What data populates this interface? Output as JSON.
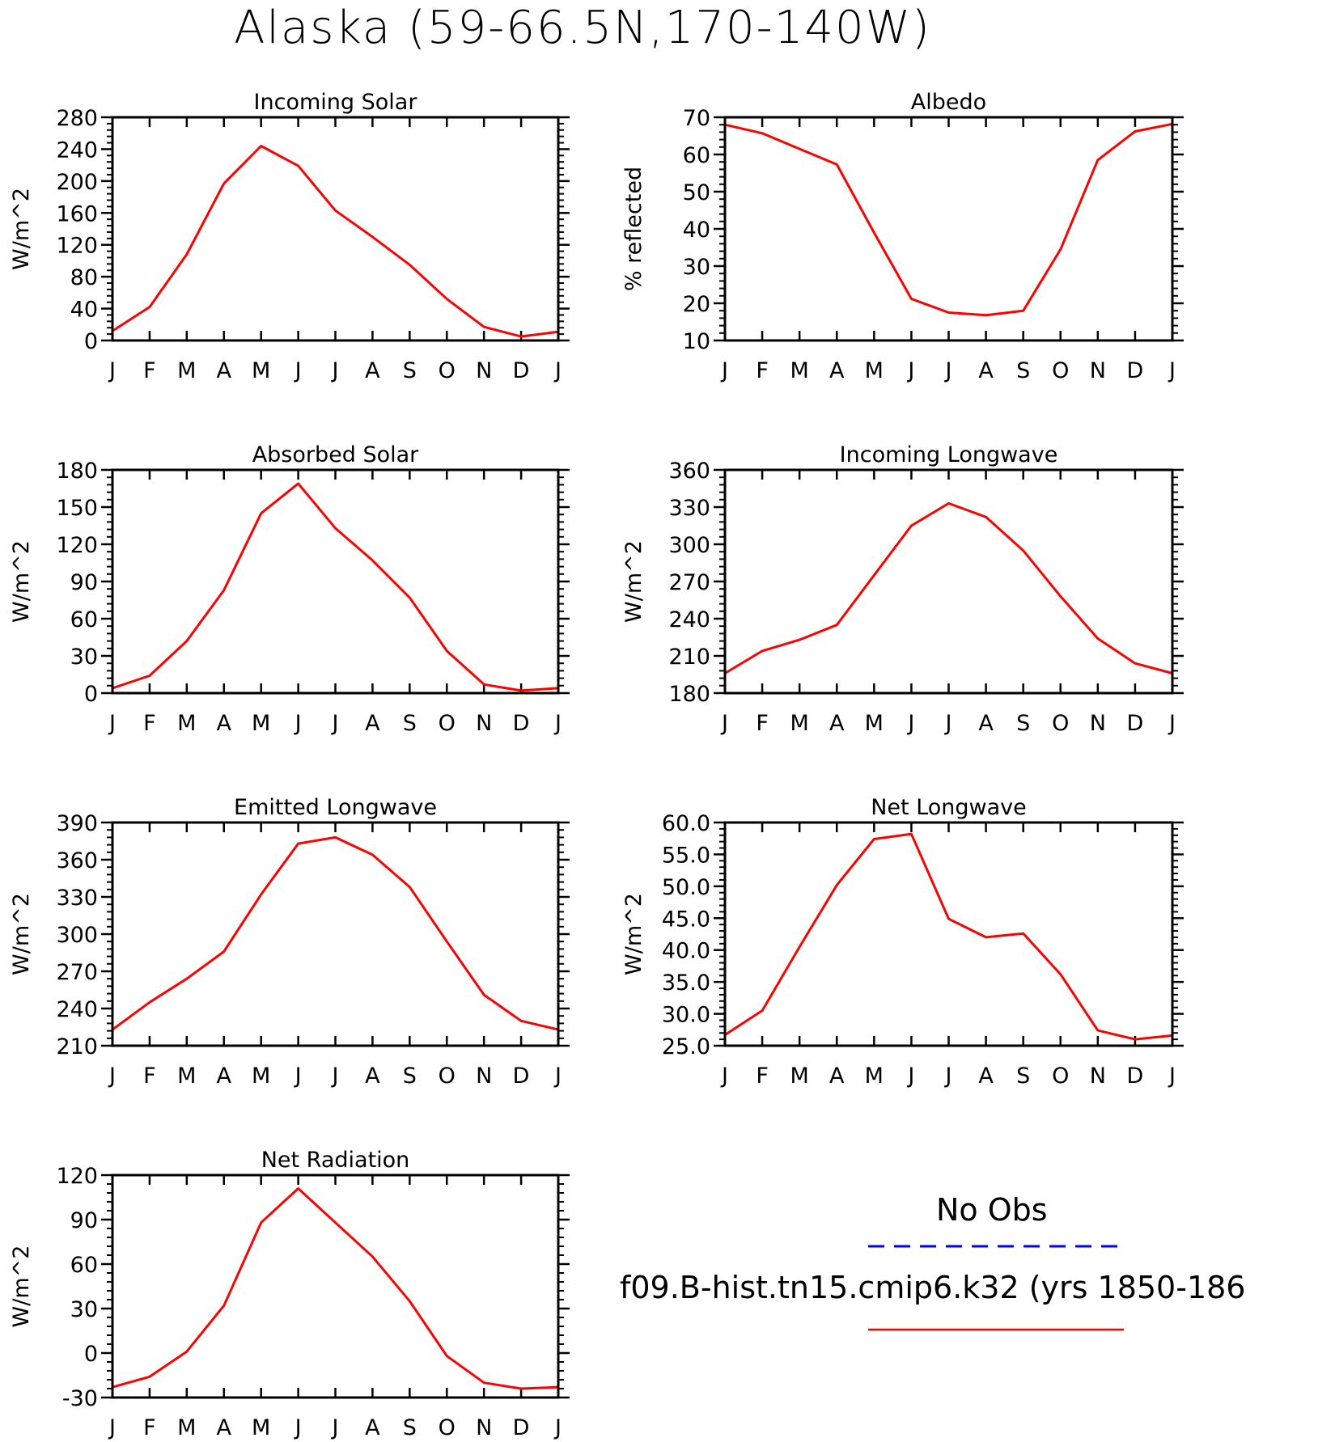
{
  "title": "Alaska (59-66.5N,170-140W)",
  "colors": {
    "model": "#ff0000",
    "obs": "#0000ff"
  },
  "legend": {
    "obs_label": "No Obs",
    "model_label": "f09.B-hist.tn15.cmip6.k32 (yrs 1850-186"
  },
  "chart_data": [
    {
      "type": "line",
      "title": "Incoming Solar",
      "ylabel": "W/m^2",
      "categories": [
        "J",
        "F",
        "M",
        "A",
        "M",
        "J",
        "J",
        "A",
        "S",
        "O",
        "N",
        "D",
        "J"
      ],
      "ylim": [
        0,
        280
      ],
      "yticks": [
        "0",
        "40",
        "80",
        "120",
        "160",
        "200",
        "240",
        "280"
      ],
      "series": [
        {
          "values": [
            12,
            42,
            108,
            197,
            244,
            219,
            163,
            130,
            95,
            52,
            17,
            5,
            11
          ]
        }
      ]
    },
    {
      "type": "line",
      "title": "Albedo",
      "ylabel": "% reflected",
      "categories": [
        "J",
        "F",
        "M",
        "A",
        "M",
        "J",
        "J",
        "A",
        "S",
        "O",
        "N",
        "D",
        "J"
      ],
      "ylim": [
        10,
        70
      ],
      "yticks": [
        "10",
        "20",
        "30",
        "40",
        "50",
        "60",
        "70"
      ],
      "series": [
        {
          "values": [
            68,
            65.7,
            61.5,
            57.3,
            39,
            21.2,
            17.5,
            16.8,
            18,
            34.5,
            58.5,
            66.2,
            68.2
          ]
        }
      ]
    },
    {
      "type": "line",
      "title": "Absorbed Solar",
      "ylabel": "W/m^2",
      "categories": [
        "J",
        "F",
        "M",
        "A",
        "M",
        "J",
        "J",
        "A",
        "S",
        "O",
        "N",
        "D",
        "J"
      ],
      "ylim": [
        0,
        180
      ],
      "yticks": [
        "0",
        "30",
        "60",
        "90",
        "120",
        "150",
        "180"
      ],
      "series": [
        {
          "values": [
            4,
            14,
            42,
            83,
            145,
            169,
            133,
            107,
            77,
            34,
            7,
            2,
            4
          ]
        }
      ]
    },
    {
      "type": "line",
      "title": "Incoming Longwave",
      "ylabel": "W/m^2",
      "categories": [
        "J",
        "F",
        "M",
        "A",
        "M",
        "J",
        "J",
        "A",
        "S",
        "O",
        "N",
        "D",
        "J"
      ],
      "ylim": [
        180,
        360
      ],
      "yticks": [
        "180",
        "210",
        "240",
        "270",
        "300",
        "330",
        "360"
      ],
      "series": [
        {
          "values": [
            196,
            214,
            223,
            235,
            275,
            315,
            333,
            322,
            295,
            258,
            224,
            204,
            196
          ]
        }
      ]
    },
    {
      "type": "line",
      "title": "Emitted Longwave",
      "ylabel": "W/m^2",
      "categories": [
        "J",
        "F",
        "M",
        "A",
        "M",
        "J",
        "J",
        "A",
        "S",
        "O",
        "N",
        "D",
        "J"
      ],
      "ylim": [
        210,
        390
      ],
      "yticks": [
        "210",
        "240",
        "270",
        "300",
        "330",
        "360",
        "390"
      ],
      "series": [
        {
          "values": [
            223,
            245,
            264,
            286,
            332,
            373,
            378,
            364,
            338,
            294,
            251,
            230,
            223
          ]
        }
      ]
    },
    {
      "type": "line",
      "title": "Net Longwave",
      "ylabel": "W/m^2",
      "categories": [
        "J",
        "F",
        "M",
        "A",
        "M",
        "J",
        "J",
        "A",
        "S",
        "O",
        "N",
        "D",
        "J"
      ],
      "ylim": [
        25,
        60
      ],
      "yticks": [
        "25.0",
        "30.0",
        "35.0",
        "40.0",
        "45.0",
        "50.0",
        "55.0",
        "60.0"
      ],
      "series": [
        {
          "values": [
            26.7,
            30.5,
            40.5,
            50.2,
            57.4,
            58.2,
            44.9,
            42,
            42.6,
            36.2,
            27.4,
            26,
            26.6
          ]
        }
      ]
    },
    {
      "type": "line",
      "title": "Net Radiation",
      "ylabel": "W/m^2",
      "categories": [
        "J",
        "F",
        "M",
        "A",
        "M",
        "J",
        "J",
        "A",
        "S",
        "O",
        "N",
        "D",
        "J"
      ],
      "ylim": [
        -30,
        120
      ],
      "yticks": [
        "-30",
        "0",
        "30",
        "60",
        "90",
        "120"
      ],
      "series": [
        {
          "values": [
            -23,
            -16,
            1,
            32,
            88,
            111,
            88,
            65,
            35,
            -2,
            -20,
            -24,
            -23
          ]
        }
      ]
    }
  ]
}
